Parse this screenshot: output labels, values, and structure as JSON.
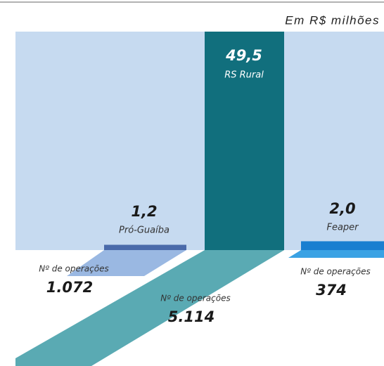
{
  "chart_data": {
    "type": "bar",
    "subtitle": "Em R$ milhões",
    "categories": [
      "Pró-Guaíba",
      "RS Rural",
      "Feaper"
    ],
    "values": [
      1.2,
      49.5,
      2.0
    ],
    "value_labels": [
      "1,2",
      "49,5",
      "2,0"
    ],
    "colors": [
      "#4a6aaa",
      "#116f7d",
      "#1a7fd0"
    ],
    "operations": {
      "label": "Nº de operações",
      "values": [
        1072,
        5114,
        374
      ],
      "value_labels": [
        "1.072",
        "5.114",
        "374"
      ]
    }
  }
}
